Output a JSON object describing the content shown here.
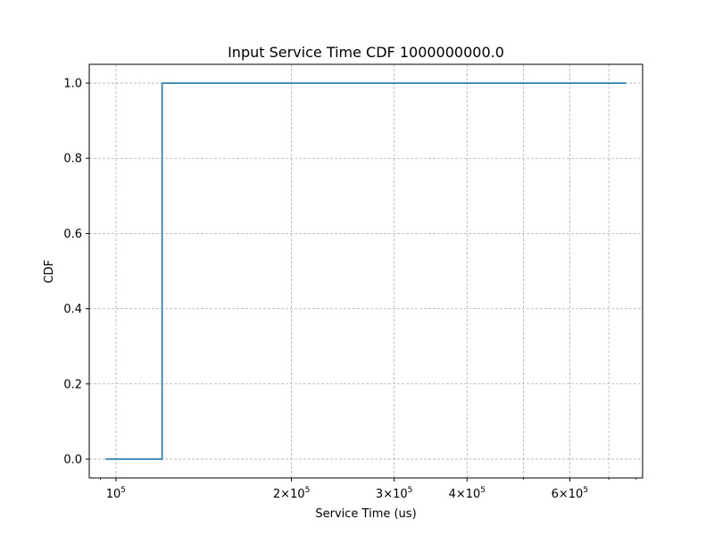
{
  "chart_data": {
    "type": "line",
    "title": "Input Service Time CDF 1000000000.0",
    "xlabel": "Service Time (us)",
    "ylabel": "CDF",
    "xscale": "log",
    "xlim": [
      90000,
      800000
    ],
    "ylim": [
      -0.05,
      1.05
    ],
    "grid": true,
    "grid_style": "dashed",
    "legend": "none",
    "line_color": "#1f77b4",
    "x_major_ticks": [
      {
        "value": 100000,
        "base": "10",
        "exp": "5"
      },
      {
        "value": 200000,
        "base": "2×10",
        "exp": "5"
      },
      {
        "value": 300000,
        "base": "3×10",
        "exp": "5"
      },
      {
        "value": 400000,
        "base": "4×10",
        "exp": "5"
      },
      {
        "value": 600000,
        "base": "6×10",
        "exp": "5"
      }
    ],
    "x_minor_ticks": [
      500000,
      700000
    ],
    "y_ticks": [
      {
        "value": 0.0,
        "label": "0.0"
      },
      {
        "value": 0.2,
        "label": "0.2"
      },
      {
        "value": 0.4,
        "label": "0.4"
      },
      {
        "value": 0.6,
        "label": "0.6"
      },
      {
        "value": 0.8,
        "label": "0.8"
      },
      {
        "value": 1.0,
        "label": "1.0"
      }
    ],
    "series": [
      {
        "style": "step",
        "x": [
          96000,
          120000,
          120000,
          750000
        ],
        "y": [
          0.0,
          0.0,
          1.0,
          1.0
        ]
      }
    ]
  }
}
